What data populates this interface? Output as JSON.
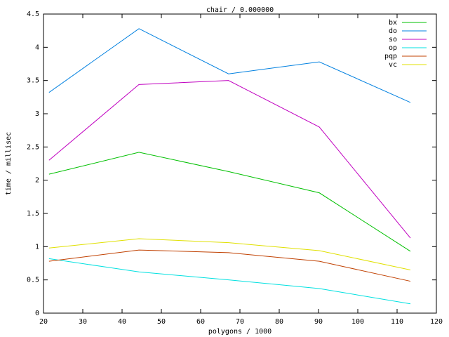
{
  "chart_data": {
    "type": "line",
    "title": "chair / 0.000000",
    "x_label": "polygons / 1000",
    "y_label": "time / millisec",
    "x": [
      21.4,
      44.3,
      67.1,
      90.2,
      113.4
    ],
    "series": [
      {
        "name": "bx",
        "color": "#00c000",
        "values": [
          2.09,
          2.42,
          2.13,
          1.81,
          0.93
        ]
      },
      {
        "name": "do",
        "color": "#0080e0",
        "values": [
          3.32,
          4.28,
          3.6,
          3.78,
          3.17
        ]
      },
      {
        "name": "so",
        "color": "#c000c0",
        "values": [
          2.3,
          3.44,
          3.5,
          2.8,
          1.13
        ]
      },
      {
        "name": "op",
        "color": "#00e0e0",
        "values": [
          0.82,
          0.62,
          0.5,
          0.37,
          0.14
        ]
      },
      {
        "name": "pqp",
        "color": "#c04000",
        "values": [
          0.78,
          0.95,
          0.91,
          0.78,
          0.48
        ]
      },
      {
        "name": "vc",
        "color": "#e0e000",
        "values": [
          0.98,
          1.12,
          1.06,
          0.94,
          0.65
        ]
      }
    ],
    "xlim": [
      20,
      120
    ],
    "xticks": [
      20,
      30,
      40,
      50,
      60,
      70,
      80,
      90,
      100,
      110,
      120
    ],
    "ylim": [
      0,
      4.5
    ],
    "yticks": [
      0,
      0.5,
      1,
      1.5,
      2,
      2.5,
      3,
      3.5,
      4,
      4.5
    ],
    "legend": "top-right"
  }
}
